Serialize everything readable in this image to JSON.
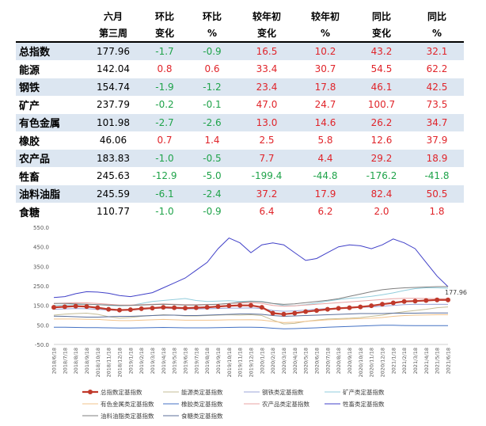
{
  "table": {
    "header_row1": [
      "",
      "六月",
      "环比",
      "环比",
      "较年初",
      "较年初",
      "同比",
      "同比"
    ],
    "header_row2": [
      "",
      "第三周",
      "变化",
      "%",
      "变化",
      "%",
      "变化",
      "%"
    ],
    "rows": [
      {
        "name": "总指数",
        "value": "177.96",
        "wow_chg": "-1.7",
        "wow_pct": "-0.9",
        "ytd_chg": "16.5",
        "ytd_pct": "10.2",
        "yoy_chg": "43.2",
        "yoy_pct": "32.1"
      },
      {
        "name": "能源",
        "value": "142.04",
        "wow_chg": "0.8",
        "wow_pct": "0.6",
        "ytd_chg": "33.4",
        "ytd_pct": "30.7",
        "yoy_chg": "54.5",
        "yoy_pct": "62.2"
      },
      {
        "name": "钢铁",
        "value": "154.74",
        "wow_chg": "-1.9",
        "wow_pct": "-1.2",
        "ytd_chg": "23.4",
        "ytd_pct": "17.8",
        "yoy_chg": "46.1",
        "yoy_pct": "42.5"
      },
      {
        "name": "矿产",
        "value": "237.79",
        "wow_chg": "-0.2",
        "wow_pct": "-0.1",
        "ytd_chg": "47.0",
        "ytd_pct": "24.7",
        "yoy_chg": "100.7",
        "yoy_pct": "73.5"
      },
      {
        "name": "有色金属",
        "value": "101.98",
        "wow_chg": "-2.7",
        "wow_pct": "-2.6",
        "ytd_chg": "13.0",
        "ytd_pct": "14.6",
        "yoy_chg": "26.2",
        "yoy_pct": "34.7"
      },
      {
        "name": "橡胶",
        "value": "46.06",
        "wow_chg": "0.7",
        "wow_pct": "1.4",
        "ytd_chg": "2.5",
        "ytd_pct": "5.8",
        "yoy_chg": "12.6",
        "yoy_pct": "37.9"
      },
      {
        "name": "农产品",
        "value": "183.83",
        "wow_chg": "-1.0",
        "wow_pct": "-0.5",
        "ytd_chg": "7.7",
        "ytd_pct": "4.4",
        "yoy_chg": "29.2",
        "yoy_pct": "18.9"
      },
      {
        "name": "牲畜",
        "value": "245.63",
        "wow_chg": "-12.9",
        "wow_pct": "-5.0",
        "ytd_chg": "-199.4",
        "ytd_pct": "-44.8",
        "yoy_chg": "-176.2",
        "yoy_pct": "-41.8"
      },
      {
        "name": "油料油脂",
        "value": "245.59",
        "wow_chg": "-6.1",
        "wow_pct": "-2.4",
        "ytd_chg": "37.2",
        "ytd_pct": "17.9",
        "yoy_chg": "82.4",
        "yoy_pct": "50.5"
      },
      {
        "name": "食糖",
        "value": "110.77",
        "wow_chg": "-1.0",
        "wow_pct": "-0.9",
        "ytd_chg": "6.4",
        "ytd_pct": "6.2",
        "yoy_chg": "2.0",
        "yoy_pct": "1.8"
      }
    ]
  },
  "chart_data": {
    "type": "line",
    "title": "",
    "xlabel": "",
    "ylabel": "",
    "ylim": [
      -50,
      550
    ],
    "yticks": [
      "550.0",
      "450.0",
      "350.0",
      "250.0",
      "150.0",
      "50.0",
      "-50.0"
    ],
    "x": [
      "2018/6/18",
      "2018/7/18",
      "2018/8/18",
      "2018/9/18",
      "2018/10/18",
      "2018/11/18",
      "2018/12/18",
      "2019/1/18",
      "2019/2/18",
      "2019/3/18",
      "2019/4/18",
      "2019/5/18",
      "2019/6/18",
      "2019/7/18",
      "2019/8/18",
      "2019/9/18",
      "2019/10/18",
      "2019/11/18",
      "2019/12/18",
      "2020/1/18",
      "2020/2/18",
      "2020/3/18",
      "2020/4/18",
      "2020/5/18",
      "2020/6/18",
      "2020/7/18",
      "2020/8/18",
      "2020/9/18",
      "2020/10/18",
      "2020/11/18",
      "2020/12/18",
      "2021/1/18",
      "2021/2/18",
      "2021/3/18",
      "2021/4/18",
      "2021/5/18",
      "2021/6/18"
    ],
    "annotation": {
      "text": "177.96",
      "x": "2021/6/18",
      "y": 177.96
    },
    "legend_position": "bottom",
    "grid": false,
    "series": [
      {
        "name": "总指数定基指数",
        "color": "#c0392b",
        "marker": true,
        "values": [
          140,
          143,
          146,
          144,
          138,
          130,
          126,
          128,
          133,
          136,
          140,
          138,
          136,
          138,
          140,
          144,
          148,
          150,
          150,
          140,
          110,
          105,
          110,
          118,
          124,
          130,
          135,
          138,
          142,
          148,
          156,
          163,
          170,
          172,
          175,
          178,
          178
        ]
      },
      {
        "name": "能源类定基指数",
        "color": "#c4bd97",
        "values": [
          100,
          105,
          108,
          110,
          104,
          92,
          85,
          88,
          94,
          98,
          102,
          100,
          96,
          96,
          98,
          100,
          102,
          100,
          102,
          98,
          75,
          55,
          58,
          68,
          75,
          80,
          82,
          84,
          88,
          94,
          100,
          110,
          118,
          124,
          130,
          138,
          142
        ]
      },
      {
        "name": "钢铁类定基指数",
        "color": "#9ba6d8",
        "values": [
          130,
          132,
          134,
          133,
          130,
          126,
          124,
          126,
          130,
          134,
          136,
          134,
          132,
          132,
          133,
          134,
          136,
          136,
          137,
          134,
          124,
          120,
          122,
          126,
          130,
          134,
          136,
          138,
          140,
          142,
          146,
          150,
          154,
          156,
          155,
          156,
          155
        ]
      },
      {
        "name": "矿产类定基指数",
        "color": "#92cddc",
        "values": [
          150,
          152,
          154,
          156,
          154,
          150,
          148,
          150,
          160,
          170,
          175,
          180,
          185,
          175,
          170,
          172,
          174,
          170,
          172,
          170,
          160,
          150,
          148,
          154,
          162,
          172,
          180,
          186,
          190,
          196,
          204,
          214,
          226,
          236,
          240,
          240,
          238
        ]
      },
      {
        "name": "有色金属类定基指数",
        "color": "#f2c38b",
        "values": [
          80,
          80,
          80,
          79,
          78,
          75,
          72,
          72,
          74,
          76,
          78,
          76,
          74,
          74,
          74,
          75,
          76,
          76,
          77,
          75,
          68,
          62,
          64,
          68,
          72,
          76,
          78,
          80,
          82,
          84,
          88,
          94,
          98,
          100,
          101,
          102,
          102
        ]
      },
      {
        "name": "橡胶类定基指数",
        "color": "#4472c4",
        "values": [
          38,
          38,
          37,
          36,
          36,
          35,
          34,
          34,
          35,
          36,
          37,
          36,
          35,
          35,
          35,
          36,
          37,
          38,
          38,
          37,
          33,
          30,
          31,
          33,
          35,
          38,
          40,
          42,
          44,
          46,
          48,
          48,
          47,
          46,
          46,
          46,
          46
        ]
      },
      {
        "name": "农产品类定基指数",
        "color": "#e8a3a3",
        "values": [
          160,
          162,
          164,
          163,
          160,
          156,
          152,
          152,
          154,
          156,
          158,
          156,
          154,
          154,
          155,
          156,
          160,
          162,
          164,
          160,
          150,
          146,
          148,
          152,
          156,
          160,
          164,
          168,
          172,
          176,
          180,
          184,
          186,
          186,
          185,
          184,
          184
        ]
      },
      {
        "name": "牲畜类定基指数",
        "color": "#4040c8",
        "values": [
          190,
          195,
          210,
          220,
          218,
          212,
          200,
          195,
          205,
          215,
          240,
          265,
          290,
          330,
          370,
          440,
          495,
          470,
          420,
          460,
          470,
          460,
          420,
          380,
          390,
          420,
          450,
          460,
          455,
          440,
          460,
          490,
          470,
          440,
          370,
          300,
          246
        ]
      },
      {
        "name": "油料油脂类定基指数",
        "color": "#7f7f7f",
        "values": [
          160,
          160,
          158,
          156,
          154,
          152,
          150,
          150,
          152,
          154,
          156,
          154,
          152,
          152,
          154,
          156,
          160,
          166,
          170,
          168,
          160,
          155,
          158,
          164,
          170,
          176,
          184,
          196,
          208,
          220,
          230,
          236,
          240,
          242,
          244,
          246,
          246
        ]
      },
      {
        "name": "食糖类定基指数",
        "color": "#5b6f9a",
        "values": [
          95,
          94,
          92,
          90,
          90,
          92,
          94,
          94,
          96,
          98,
          100,
          100,
          98,
          98,
          100,
          102,
          104,
          106,
          106,
          104,
          98,
          94,
          96,
          98,
          100,
          102,
          104,
          106,
          108,
          108,
          108,
          110,
          110,
          110,
          111,
          111,
          111
        ]
      }
    ]
  }
}
